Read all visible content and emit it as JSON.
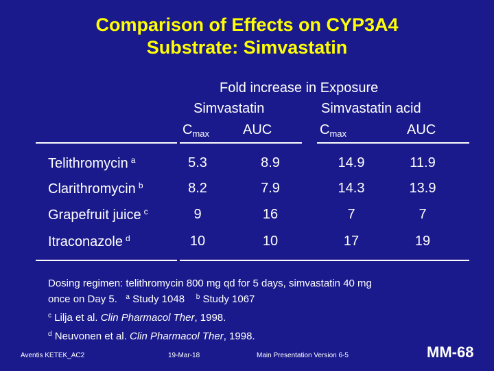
{
  "title": {
    "line1": "Comparison of Effects on CYP3A4",
    "line2": "Substrate: Simvastatin"
  },
  "table": {
    "group_header": "Fold increase in Exposure",
    "subgroups": [
      "Simvastatin",
      "Simvastatin acid"
    ],
    "columns": [
      {
        "base": "C",
        "sub": "max"
      },
      {
        "base": "AUC",
        "sub": ""
      },
      {
        "base": "C",
        "sub": "max"
      },
      {
        "base": "AUC",
        "sub": ""
      }
    ],
    "rows": [
      {
        "label": "Telithromycin",
        "mark": "a",
        "values": [
          "5.3",
          "8.9",
          "14.9",
          "11.9"
        ]
      },
      {
        "label": "Clarithromycin",
        "mark": "b",
        "values": [
          "8.2",
          "7.9",
          "14.3",
          "13.9"
        ]
      },
      {
        "label": "Grapefruit juice",
        "mark": "c",
        "values": [
          "9",
          "16",
          "7",
          "7"
        ]
      },
      {
        "label": "Itraconazole",
        "mark": "d",
        "values": [
          "10",
          "10",
          "17",
          "19"
        ]
      }
    ]
  },
  "notes": {
    "dosing_line1": "Dosing regimen: telithromycin 800 mg qd for 5 days, simvastatin 40 mg",
    "dosing_line2": "once on Day 5.",
    "mark_a": "a",
    "study_a": "Study 1048",
    "mark_b": "b",
    "study_b": "Study 1067",
    "mark_c": "c",
    "ref_c_author": "Lilja et al.",
    "ref_c_journal": "Clin Pharmacol Ther",
    "ref_c_year": ", 1998.",
    "mark_d": "d",
    "ref_d_author": "Neuvonen et al.",
    "ref_d_journal": "Clin Pharmacol Ther",
    "ref_d_year": ", 1998."
  },
  "footer": {
    "left": "Aventis KETEK_AC2",
    "date": "19-Mar-18",
    "version": "Main Presentation Version 6-5",
    "slide_id": "MM-68"
  },
  "colors": {
    "background": "#1a1a8c",
    "title": "#ffff00",
    "text": "#ffffff"
  }
}
